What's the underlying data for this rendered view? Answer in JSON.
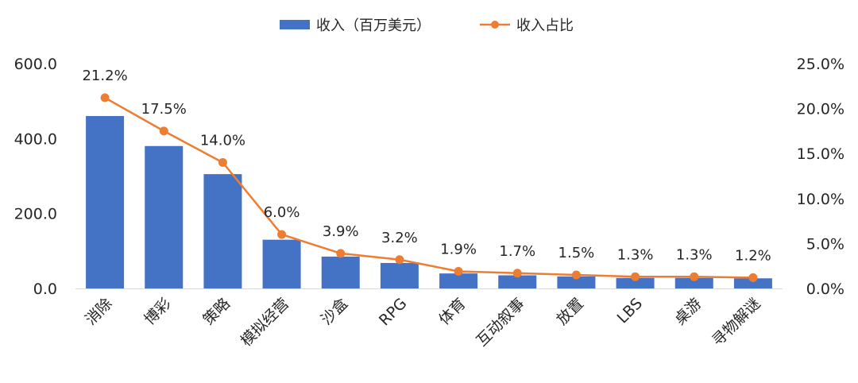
{
  "chart_data": {
    "type": "bar",
    "categories": [
      "消除",
      "博彩",
      "策略",
      "模拟经营",
      "沙盒",
      "RPG",
      "体育",
      "互动叙事",
      "放置",
      "LBS",
      "桌游",
      "寻物解谜"
    ],
    "series": [
      {
        "name": "收入（百万美元）",
        "type": "bar",
        "axis": "left",
        "color": "#4472C4",
        "values": [
          460,
          380,
          305,
          130,
          85,
          68,
          40,
          35,
          32,
          28,
          28,
          27
        ]
      },
      {
        "name": "收入占比",
        "type": "line",
        "axis": "right",
        "color": "#ED7D31",
        "values": [
          21.2,
          17.5,
          14.0,
          6.0,
          3.9,
          3.2,
          1.9,
          1.7,
          1.5,
          1.3,
          1.3,
          1.2
        ],
        "data_labels": [
          "21.2%",
          "17.5%",
          "14.0%",
          "6.0%",
          "3.9%",
          "3.2%",
          "1.9%",
          "1.7%",
          "1.5%",
          "1.3%",
          "1.3%",
          "1.2%"
        ]
      }
    ],
    "y_left": {
      "ylim": [
        0,
        600
      ],
      "ticks": [
        "0.0",
        "200.0",
        "400.0",
        "600.0"
      ]
    },
    "y_right": {
      "ylim": [
        0,
        25
      ],
      "ticks": [
        "0.0%",
        "5.0%",
        "10.0%",
        "15.0%",
        "20.0%",
        "25.0%"
      ]
    },
    "legend_position": "top-center",
    "grid": false
  }
}
